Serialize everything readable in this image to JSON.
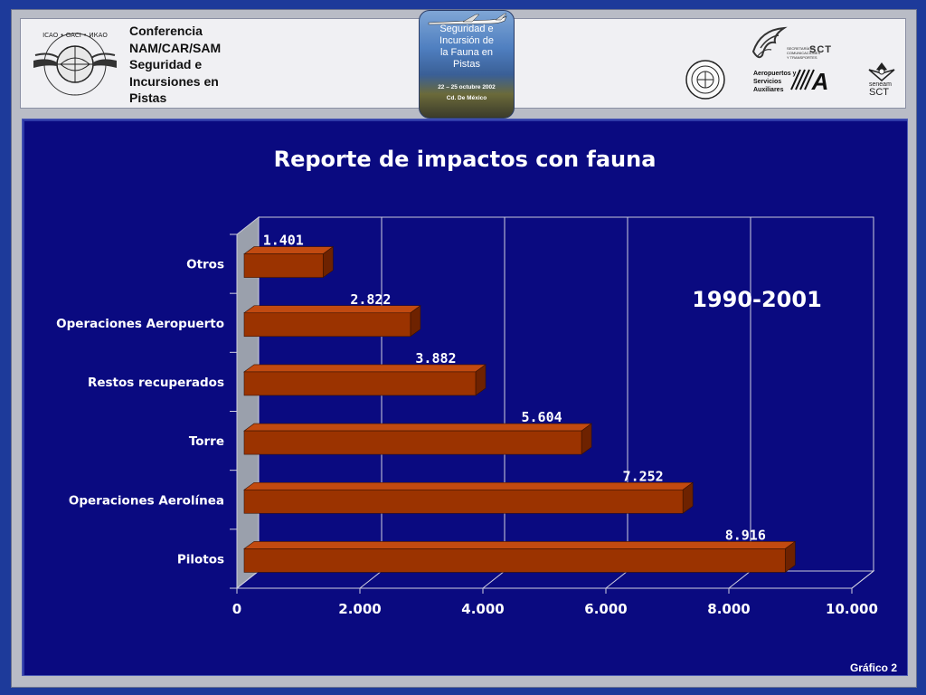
{
  "header": {
    "conference_title": [
      "Conferencia",
      "NAM/CAR/SAM",
      "Seguridad e",
      "Incursiones en",
      "Pistas"
    ],
    "icao_logo_text": "ICAO • OACI • ИКАО",
    "badge": {
      "title_lines": [
        "Seguridad e",
        "Incursión de",
        "la Fauna en",
        "Pistas"
      ],
      "date": "22 – 25 octubre 2002",
      "city": "Cd. De México"
    },
    "sct_logo_text": [
      "SECRETARÍA DE",
      "COMUNICACIONES",
      "Y TRANSPORTES"
    ],
    "sct_mark": "SCT",
    "asa_text": [
      "Aeropuertos y",
      "Servicios",
      "Auxiliares"
    ],
    "asa_mark": "A",
    "seneam_text": [
      "seneam",
      "SCT"
    ]
  },
  "chart_data": {
    "type": "bar",
    "orientation": "horizontal",
    "title": "Reporte de impactos con fauna",
    "annotation": "1990-2001",
    "categories": [
      "Otros",
      "Operaciones Aeropuerto",
      "Restos recuperados",
      "Torre",
      "Operaciones Aerolínea",
      "Pilotos"
    ],
    "values": [
      1401,
      2822,
      3882,
      5604,
      7252,
      8916
    ],
    "value_labels": [
      "1.401",
      "2.822",
      "3.882",
      "5.604",
      "7.252",
      "8.916"
    ],
    "xlim": [
      0,
      10000
    ],
    "xticks": [
      0,
      2000,
      4000,
      6000,
      8000,
      10000
    ],
    "xtick_labels": [
      "0",
      "2.000",
      "4.000",
      "6.000",
      "8.000",
      "10.000"
    ],
    "grid": true,
    "legend": "none",
    "bar_color": "#9b3300",
    "bar_top_color": "#c24a10",
    "bar_side_color": "#6e2200"
  },
  "footer": {
    "label": "Gráfico 2"
  }
}
